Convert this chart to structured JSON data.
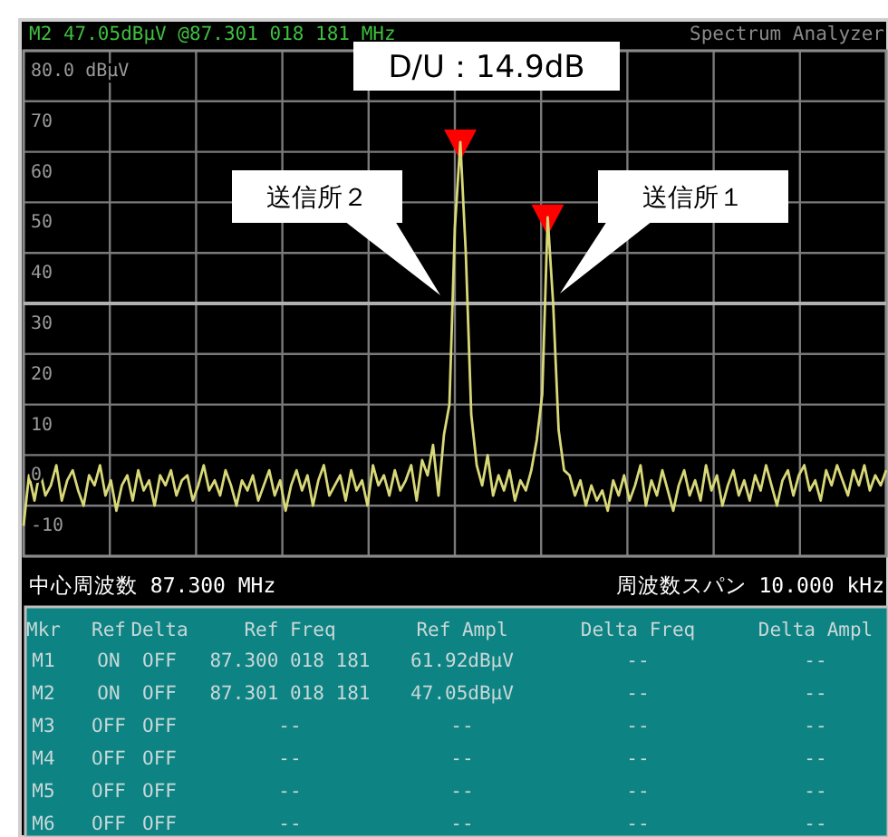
{
  "chart_data": {
    "type": "line",
    "title": "M2 47.05dBμV @87.301 018 181 MHz",
    "subtitle": "Spectrum Analyzer",
    "categories": [
      null,
      null,
      null,
      null,
      null,
      null,
      null,
      null,
      null,
      null,
      null,
      null,
      null,
      null,
      null,
      null,
      null,
      null,
      null,
      null,
      null,
      null,
      null,
      null,
      null,
      null,
      null,
      null,
      null,
      null,
      null,
      null,
      null,
      null,
      null,
      null,
      null,
      null,
      null,
      null,
      null,
      null,
      null,
      null,
      null,
      null,
      null,
      null,
      null,
      null,
      null,
      null,
      null,
      null,
      null,
      null,
      null,
      null,
      null,
      null,
      null,
      null,
      null,
      null,
      null,
      null,
      null,
      null,
      null,
      null,
      null,
      null,
      null,
      null,
      null,
      null,
      null,
      null,
      null,
      null,
      null,
      null,
      null,
      null,
      null,
      null,
      null,
      null,
      null,
      null,
      null,
      null,
      null,
      null,
      null,
      null,
      null,
      null,
      null,
      null,
      null,
      null,
      null,
      null,
      null,
      null,
      null,
      null,
      null,
      null,
      null,
      null,
      null,
      null,
      null,
      null,
      null,
      null,
      null,
      null,
      null,
      null,
      null,
      null,
      null,
      null,
      null,
      null,
      null,
      null,
      null,
      null,
      null,
      null,
      null,
      null,
      null,
      null,
      null,
      null,
      null,
      null,
      null,
      null,
      null,
      null,
      null,
      null,
      null,
      null,
      null,
      null,
      null,
      null,
      null,
      null,
      null,
      null,
      null
    ],
    "series": [
      {
        "color": "#d8d878",
        "values": [
          -14,
          -4,
          -9,
          -3,
          -8,
          -6,
          -2,
          -9,
          -5,
          -3,
          -7,
          -10,
          -4,
          -6,
          -2,
          -8,
          -5,
          -11,
          -6,
          -4,
          -9,
          -3,
          -7,
          -5,
          -10,
          -4,
          -6,
          -3,
          -8,
          -5,
          -4,
          -9,
          -6,
          -2,
          -7,
          -5,
          -8,
          -3,
          -6,
          -10,
          -5,
          -7,
          -4,
          -9,
          -6,
          -3,
          -8,
          -5,
          -11,
          -6,
          -3,
          -7,
          -4,
          -10,
          -5,
          -2,
          -8,
          -6,
          -4,
          -9,
          -3,
          -7,
          -5,
          -10,
          -2,
          -6,
          -4,
          -8,
          -3,
          -7,
          -5,
          -2,
          -9,
          -1,
          -4,
          2,
          -8,
          4,
          10,
          45,
          61.92,
          40,
          8,
          -2,
          -6,
          0,
          -8,
          -4,
          -7,
          -3,
          -9,
          -5,
          -7,
          -3,
          3,
          12,
          47.05,
          30,
          5,
          -3,
          -4,
          -8,
          -5,
          -10,
          -6,
          -9,
          -7,
          -11,
          -5,
          -8,
          -4,
          -9,
          -6,
          -2,
          -10,
          -5,
          -8,
          -3,
          -7,
          -11,
          -6,
          -3,
          -8,
          -5,
          -9,
          -2,
          -7,
          -4,
          -10,
          -6,
          -3,
          -8,
          -5,
          -9,
          -4,
          -7,
          -2,
          -6,
          -10,
          -5,
          -3,
          -8,
          -4,
          -2,
          -7,
          -5,
          -9,
          -3,
          -6,
          -2,
          -5,
          -8,
          -3,
          -6,
          -2,
          -7,
          -4,
          -6,
          -3
        ]
      },
      {
        "type": "scatter",
        "color": "#ff0000",
        "marker": "triangle",
        "values": [
          null,
          null,
          null,
          null,
          null,
          null,
          null,
          null,
          null,
          null,
          null,
          null,
          null,
          null,
          null,
          null,
          null,
          null,
          null,
          null,
          null,
          null,
          null,
          null,
          null,
          null,
          null,
          null,
          null,
          null,
          null,
          null,
          null,
          null,
          null,
          null,
          null,
          null,
          null,
          null,
          null,
          null,
          null,
          null,
          null,
          null,
          null,
          null,
          null,
          null,
          null,
          null,
          null,
          null,
          null,
          null,
          null,
          null,
          null,
          null,
          null,
          null,
          null,
          null,
          null,
          null,
          null,
          null,
          null,
          null,
          null,
          null,
          null,
          null,
          null,
          null,
          null,
          null,
          null,
          null,
          61.92,
          null,
          null,
          null,
          null,
          null,
          null,
          null,
          null,
          null,
          null,
          null,
          null,
          null,
          null,
          null,
          47.05,
          null,
          null,
          null,
          null,
          null,
          null,
          null,
          null,
          null,
          null,
          null,
          null,
          null,
          null,
          null,
          null,
          null,
          null,
          null,
          null,
          null,
          null,
          null,
          null,
          null,
          null,
          null,
          null,
          null,
          null,
          null,
          null,
          null,
          null,
          null,
          null,
          null,
          null,
          null,
          null,
          null,
          null,
          null,
          null,
          null,
          null,
          null,
          null,
          null,
          null,
          null,
          null,
          null,
          null,
          null,
          null,
          null,
          null,
          null,
          null,
          null,
          null
        ]
      }
    ],
    "ylim": [
      -20,
      80
    ],
    "yticks": [
      {
        "value": 80,
        "label": "80.0 dBμV"
      },
      70,
      60,
      50,
      40,
      30,
      20,
      10,
      0,
      {
        "value": -10,
        "label": "-10"
      },
      {
        "value": -20,
        "label": null
      }
    ],
    "tick_labels": "y",
    "grid": true,
    "ref_lines": [
      {
        "axis": "y",
        "value": 30,
        "color": "#b0b0b0"
      }
    ],
    "annotations": [
      "D/U：14.9dB",
      "送信所２",
      "送信所１",
      "中心周波数 87.300 MHz",
      "周波数スパン 10.000 kHz",
      "Mkr",
      "Ref",
      "Delta",
      "Ref Freq",
      "Ref Ampl",
      "Delta Freq",
      "Delta Ampl",
      "M1",
      "ON",
      "OFF",
      "87.300 018 181",
      "61.92dBμV",
      "--",
      "--",
      "M2",
      "ON",
      "OFF",
      "87.301 018 181",
      "47.05dBμV",
      "--",
      "--",
      "M3",
      "OFF",
      "OFF",
      "--",
      "--",
      "--",
      "--",
      "M4",
      "OFF",
      "OFF",
      "--",
      "--",
      "--",
      "--",
      "M5",
      "OFF",
      "OFF",
      "--",
      "--",
      "--",
      "--",
      "M6",
      "OFF",
      "OFF",
      "--",
      "--",
      "--",
      "--"
    ]
  }
}
